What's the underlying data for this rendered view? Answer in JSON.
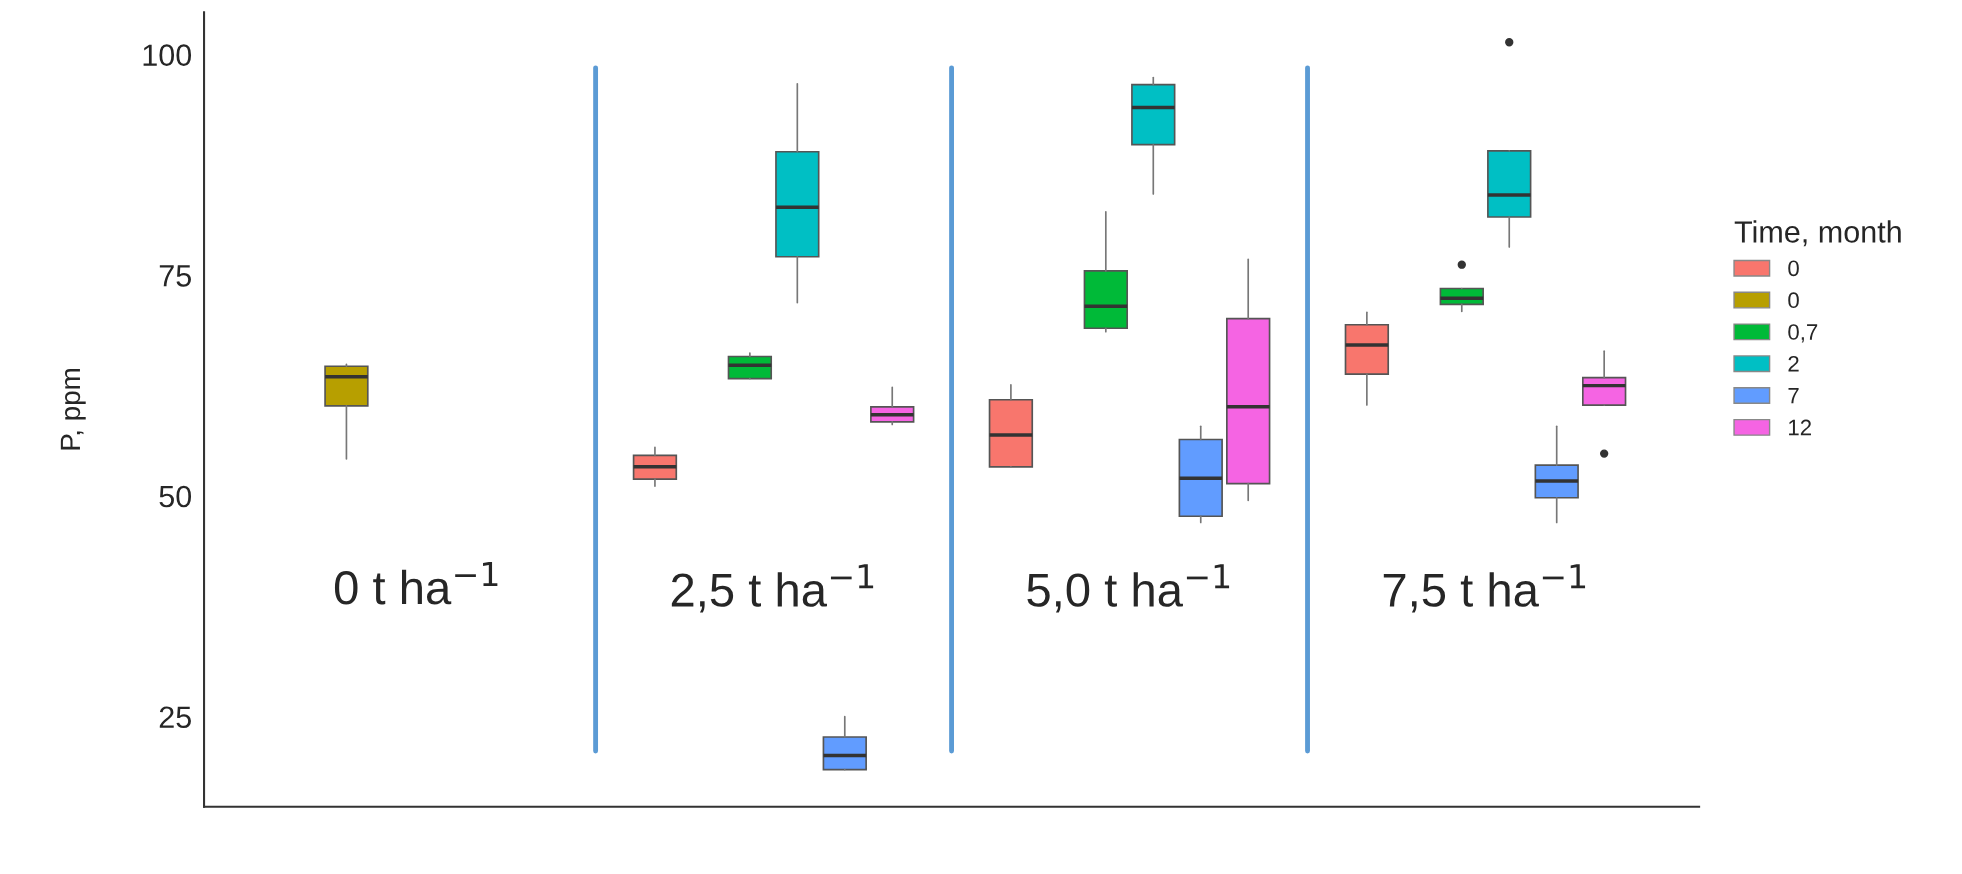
{
  "chart_data": {
    "type": "box",
    "ylabel": "P, ppm",
    "legend_title": "Time, month",
    "categories": [
      null,
      null,
      null,
      null
    ],
    "ylim": [
      14.8,
      104.8
    ],
    "yticks": [
      25,
      50,
      75,
      100
    ],
    "tick_labels": "y",
    "legend": "right",
    "grid": false,
    "annotations": [
      "0 t ha$^{−1}$",
      "2,5 t ha$^{−1}$",
      "5,0 t ha$^{−1}$",
      "7,5 t ha$^{−1}$"
    ],
    "series": [
      {
        "name": "0",
        "color": "#f8766d",
        "boxes": [
          null,
          {
            "low": 51.1,
            "q1": 51.9,
            "median": 53.3,
            "q3": 54.6,
            "high": 55.5
          },
          {
            "low": 53.3,
            "q1": 53.3,
            "median": 56.9,
            "q3": 60.9,
            "high": 62.6
          },
          {
            "low": 60.3,
            "q1": 63.8,
            "median": 67.1,
            "q3": 69.4,
            "high": 70.8
          }
        ]
      },
      {
        "name": "0",
        "color": "#b79f00",
        "boxes": [
          {
            "low": 54.2,
            "q1": 60.2,
            "median": 63.5,
            "q3": 64.7,
            "high": 64.9
          },
          null,
          null,
          null
        ]
      },
      {
        "name": "0,7",
        "color": "#00ba38",
        "boxes": [
          null,
          {
            "low": 63.3,
            "q1": 63.3,
            "median": 64.8,
            "q3": 65.8,
            "high": 66.2
          },
          {
            "low": 68.6,
            "q1": 69.0,
            "median": 71.5,
            "q3": 75.5,
            "high": 82.2
          },
          {
            "low": 70.9,
            "q1": 71.7,
            "median": 72.4,
            "q3": 73.5,
            "high": 73.5,
            "outliers": [
              76.2
            ]
          }
        ]
      },
      {
        "name": "2",
        "color": "#00bfc4",
        "boxes": [
          null,
          {
            "low": 71.9,
            "q1": 77.1,
            "median": 82.7,
            "q3": 89.0,
            "high": 96.7
          },
          {
            "low": 84.2,
            "q1": 89.8,
            "median": 94.0,
            "q3": 96.6,
            "high": 97.4
          },
          {
            "low": 78.2,
            "q1": 81.6,
            "median": 84.1,
            "q3": 89.1,
            "high": 89.1,
            "outliers": [
              101.4
            ]
          }
        ]
      },
      {
        "name": "7",
        "color": "#619cff",
        "boxes": [
          null,
          {
            "low": 19.0,
            "q1": 19.0,
            "median": 20.6,
            "q3": 22.7,
            "high": 25.0
          },
          {
            "low": 47.0,
            "q1": 47.7,
            "median": 52.0,
            "q3": 56.4,
            "high": 57.9
          },
          {
            "low": 47.0,
            "q1": 49.8,
            "median": 51.7,
            "q3": 53.5,
            "high": 57.9
          }
        ]
      },
      {
        "name": "12",
        "color": "#f564e3",
        "boxes": [
          null,
          {
            "low": 58.1,
            "q1": 58.4,
            "median": 59.2,
            "q3": 60.1,
            "high": 62.3
          },
          {
            "low": 49.5,
            "q1": 51.4,
            "median": 60.1,
            "q3": 70.1,
            "high": 76.8
          },
          {
            "low": 60.3,
            "q1": 60.3,
            "median": 62.5,
            "q3": 63.4,
            "high": 66.4,
            "outliers": [
              54.8
            ]
          }
        ]
      }
    ]
  }
}
